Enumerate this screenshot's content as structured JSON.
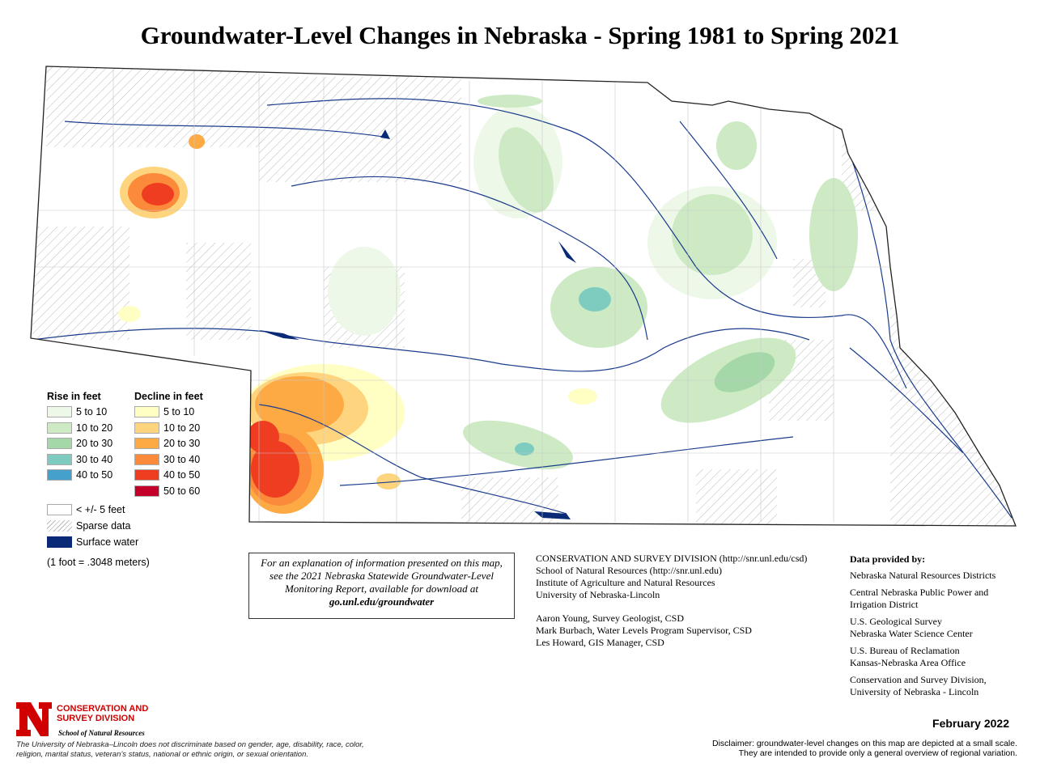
{
  "title": "Groundwater-Level Changes in Nebraska - Spring 1981 to Spring 2021",
  "legend": {
    "rise_header": "Rise in feet",
    "decline_header": "Decline in feet",
    "rise": [
      {
        "label": "5 to 10",
        "color": "#edf8e9"
      },
      {
        "label": "10 to 20",
        "color": "#cdeac4"
      },
      {
        "label": "20 to 30",
        "color": "#a4d8a8"
      },
      {
        "label": "30 to 40",
        "color": "#7ecbc0"
      },
      {
        "label": "40 to 50",
        "color": "#45a0cc"
      }
    ],
    "decline": [
      {
        "label": "5 to 10",
        "color": "#ffffc4"
      },
      {
        "label": "10 to 20",
        "color": "#fed57e"
      },
      {
        "label": "20 to 30",
        "color": "#fdaa45"
      },
      {
        "label": "30 to 40",
        "color": "#fb8a3a"
      },
      {
        "label": "40 to 50",
        "color": "#ef3d22"
      },
      {
        "label": "50 to 60",
        "color": "#c4002a"
      }
    ],
    "other": [
      {
        "label": "< +/- 5 feet",
        "color": "#ffffff"
      },
      {
        "label": "Sparse data",
        "color": "hatch"
      },
      {
        "label": "Surface water",
        "color": "#0a2a78"
      }
    ],
    "conversion": "(1 foot = .3048 meters)"
  },
  "explanation": {
    "text": "For an explanation of information presented on this map, see the 2021 Nebraska Statewide Groundwater-Level Monitoring Report, available for download at",
    "link": "go.unl.edu/groundwater"
  },
  "credits": {
    "org": [
      "CONSERVATION AND SURVEY DIVISION (http://snr.unl.edu/csd)",
      "School of Natural Resources (http://snr.unl.edu)",
      "Institute of Agriculture and Natural Resources",
      "University of Nebraska-Lincoln"
    ],
    "people": [
      "Aaron Young, Survey Geologist, CSD",
      "Mark Burbach, Water Levels Program Supervisor, CSD",
      "Les Howard, GIS Manager, CSD"
    ]
  },
  "provided": {
    "header": "Data provided by:",
    "groups": [
      [
        "Nebraska Natural Resources Districts"
      ],
      [
        "Central Nebraska Public Power and",
        "Irrigation District"
      ],
      [
        "U.S. Geological Survey",
        "Nebraska Water Science Center"
      ],
      [
        "U.S. Bureau of Reclamation",
        "Kansas-Nebraska Area Office"
      ],
      [
        "Conservation and Survey Division,",
        "University of Nebraska - Lincoln"
      ]
    ]
  },
  "logo": {
    "letter": "N",
    "line1": "CONSERVATION AND",
    "line2": "SURVEY DIVISION",
    "line3": "School of Natural Resources",
    "color": "#d00000"
  },
  "nondiscrimination": "The University of Nebraska–Lincoln does not discriminate based on gender, age, disability, race, color, religion, marital status, veteran’s status, national or ethnic origin, or sexual orientation.",
  "date": "February 2022",
  "disclaimer": [
    "Disclaimer: groundwater-level changes on this map are depicted at a small scale.",
    "They are intended to provide only a general overview of regional variation."
  ]
}
